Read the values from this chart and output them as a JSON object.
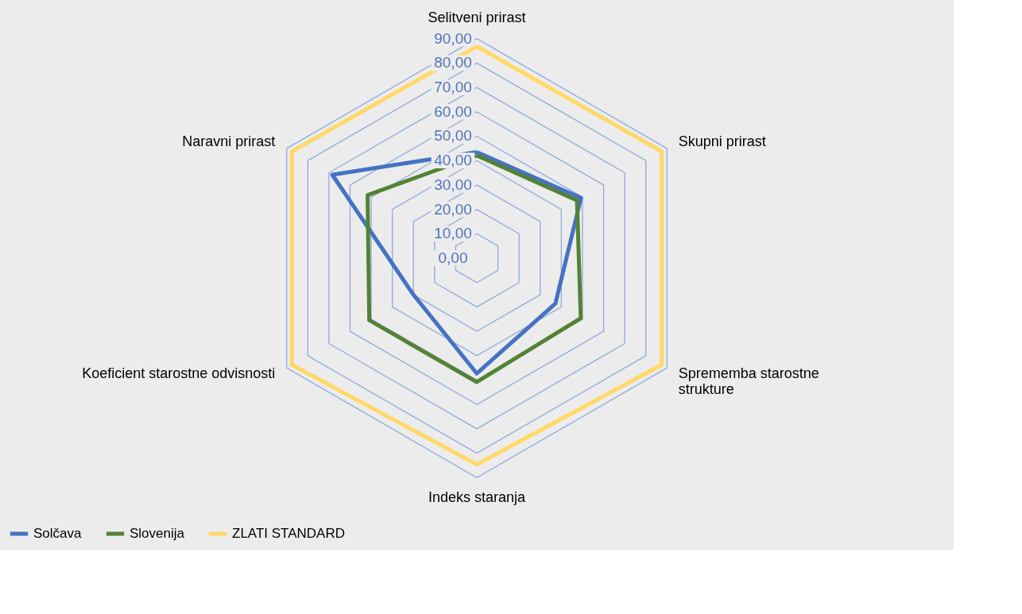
{
  "chart_data": {
    "type": "radar",
    "categories": [
      "Selitveni prirast",
      "Skupni prirast",
      "Sprememba starostne\nstrukture",
      "Indeks staranja",
      "Koeficient starostne odvisnosti",
      "Naravni prirast"
    ],
    "series": [
      {
        "name": "Solčava",
        "color": "#4472c4",
        "values": [
          43.5,
          49.3,
          37.2,
          47.3,
          30,
          68.4
        ]
      },
      {
        "name": "Slovenija",
        "color": "#548235",
        "values": [
          42.1,
          47.4,
          49.2,
          50.8,
          50.9,
          51.7
        ]
      },
      {
        "name": "ZLATI STANDARD",
        "color": "#ffd966",
        "values": [
          86.8,
          87.5,
          87.5,
          84.6,
          87.5,
          87.5
        ]
      }
    ],
    "ylim": [
      0,
      90
    ],
    "yticks": [
      {
        "value": 0,
        "label": "0,00"
      },
      {
        "value": 10,
        "label": "10,00"
      },
      {
        "value": 20,
        "label": "20,00"
      },
      {
        "value": 30,
        "label": "30,00"
      },
      {
        "value": 40,
        "label": "40,00"
      },
      {
        "value": 50,
        "label": "50,00"
      },
      {
        "value": 60,
        "label": "60,00"
      },
      {
        "value": 70,
        "label": "70,00"
      },
      {
        "value": 80,
        "label": "80,00"
      },
      {
        "value": 90,
        "label": "90,00"
      }
    ],
    "grid": true,
    "legend": "bottom"
  }
}
